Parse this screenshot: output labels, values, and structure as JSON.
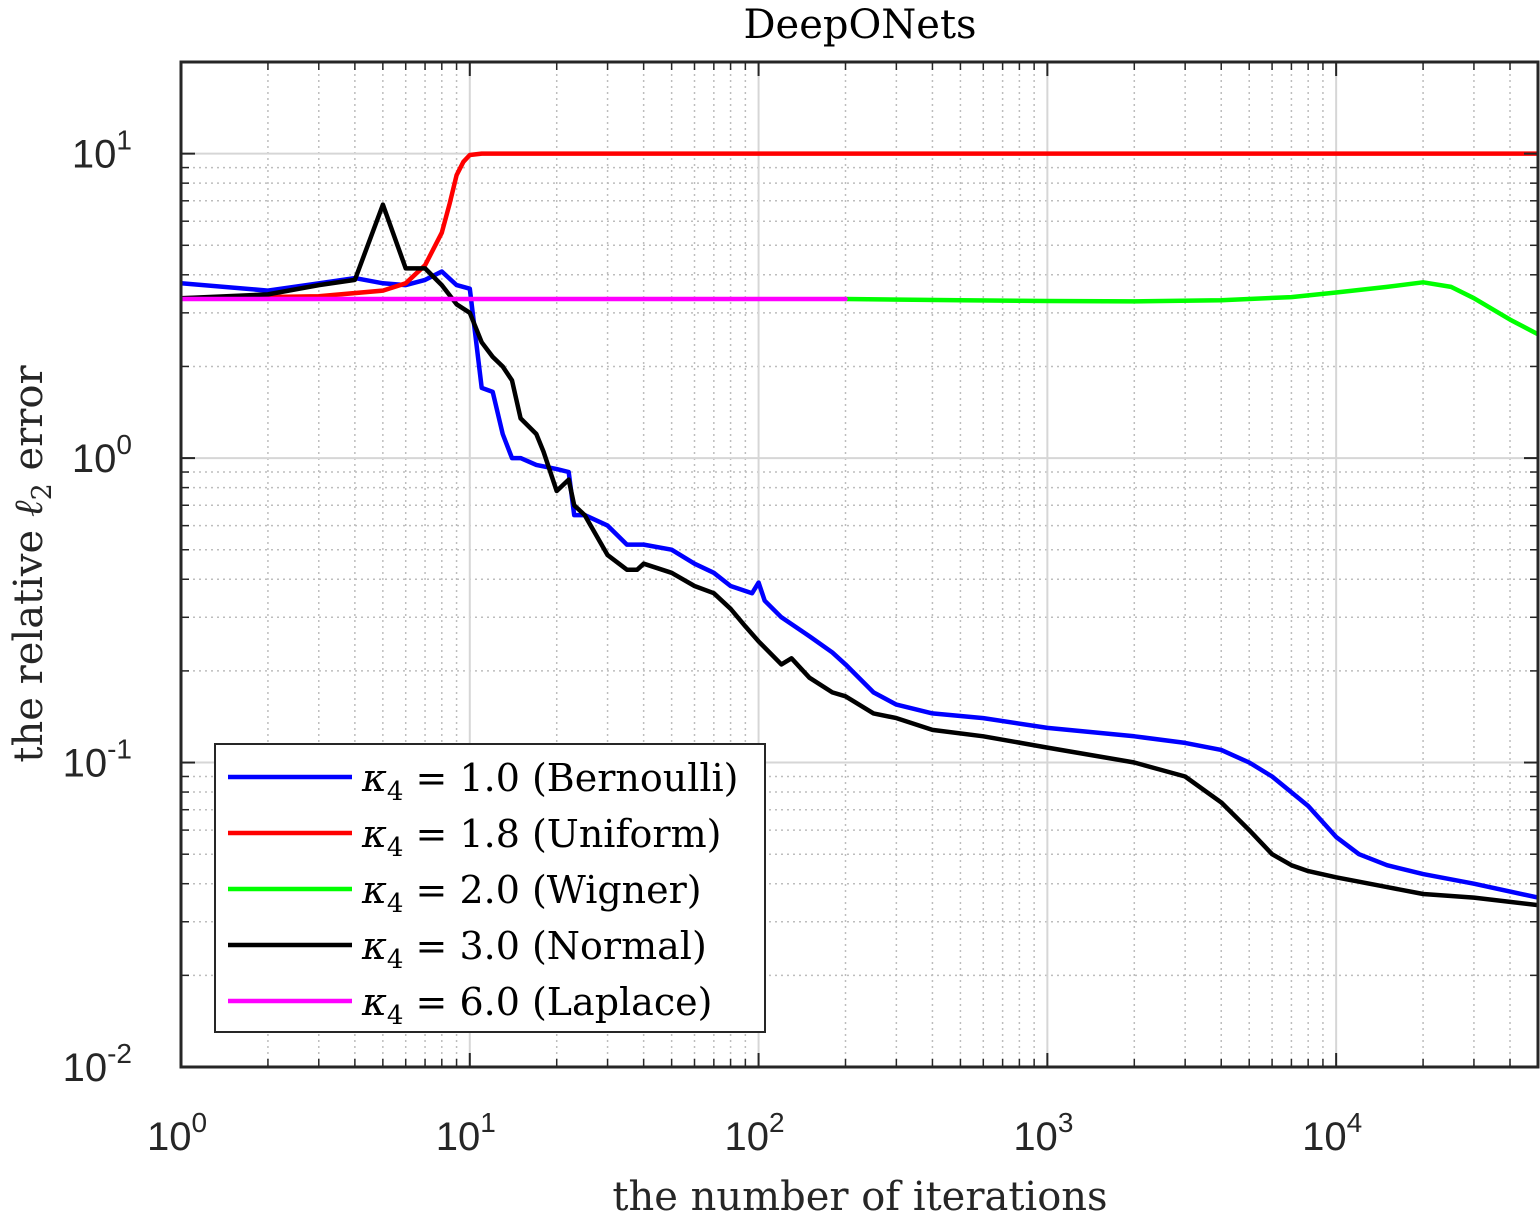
{
  "chart_data": {
    "type": "line",
    "title": "DeepONets",
    "xlabel": "the number of iterations",
    "ylabel": {
      "prefix": "the relative ",
      "symbol": "ℓ",
      "subscript": "2",
      "suffix": " error"
    },
    "xscale": "log",
    "yscale": "log",
    "xlim": [
      1,
      50000
    ],
    "ylim": [
      0.01,
      20
    ],
    "grid": true,
    "legend_position": "bottom-left",
    "x_ticks": [
      {
        "value": 1,
        "base": "10",
        "exp": "0"
      },
      {
        "value": 10,
        "base": "10",
        "exp": "1"
      },
      {
        "value": 100,
        "base": "10",
        "exp": "2"
      },
      {
        "value": 1000,
        "base": "10",
        "exp": "3"
      },
      {
        "value": 10000,
        "base": "10",
        "exp": "4"
      }
    ],
    "y_ticks": [
      {
        "value": 10,
        "base": "10",
        "exp": "1"
      },
      {
        "value": 1,
        "base": "10",
        "exp": "0"
      },
      {
        "value": 0.1,
        "base": "10",
        "exp": "-1"
      },
      {
        "value": 0.01,
        "base": "10",
        "exp": "-2"
      }
    ],
    "series": [
      {
        "name": "κ4 = 1.0 (Bernoulli)",
        "label": {
          "kappa": "κ",
          "sub": "4",
          "rest": " = 1.0 (Bernoulli)"
        },
        "color": "#0000ff",
        "x": [
          1,
          2,
          3,
          4,
          5,
          6,
          7,
          8,
          9,
          10,
          11,
          12,
          13,
          14,
          15,
          17,
          20,
          22,
          23,
          25,
          30,
          35,
          40,
          50,
          60,
          70,
          80,
          95,
          100,
          105,
          120,
          150,
          180,
          200,
          250,
          300,
          400,
          600,
          1000,
          2000,
          3000,
          4000,
          5000,
          6000,
          8000,
          10000,
          12000,
          15000,
          20000,
          30000,
          50000
        ],
        "y": [
          3.75,
          3.55,
          3.75,
          3.9,
          3.75,
          3.7,
          3.85,
          4.1,
          3.7,
          3.6,
          1.7,
          1.65,
          1.2,
          1.0,
          1.0,
          0.95,
          0.92,
          0.9,
          0.65,
          0.65,
          0.6,
          0.52,
          0.52,
          0.5,
          0.45,
          0.42,
          0.38,
          0.36,
          0.39,
          0.34,
          0.3,
          0.26,
          0.23,
          0.21,
          0.17,
          0.155,
          0.145,
          0.14,
          0.13,
          0.122,
          0.116,
          0.11,
          0.1,
          0.09,
          0.072,
          0.057,
          0.05,
          0.046,
          0.043,
          0.04,
          0.036
        ]
      },
      {
        "name": "κ4 = 1.8 (Uniform)",
        "label": {
          "kappa": "κ",
          "sub": "4",
          "rest": " = 1.8 (Uniform)"
        },
        "color": "#ff0000",
        "x": [
          1,
          3,
          5,
          6,
          7,
          8,
          8.5,
          9,
          9.5,
          10,
          11,
          15,
          100,
          1000,
          10000,
          50000
        ],
        "y": [
          3.35,
          3.4,
          3.55,
          3.75,
          4.3,
          5.5,
          6.8,
          8.5,
          9.4,
          9.9,
          10,
          10,
          10,
          10,
          10,
          10
        ]
      },
      {
        "name": "κ4 = 2.0 (Wigner)",
        "label": {
          "kappa": "κ",
          "sub": "4",
          "rest": " = 2.0 (Wigner)"
        },
        "color": "#00ff00",
        "x": [
          200,
          500,
          1000,
          2000,
          4000,
          7000,
          10000,
          15000,
          20000,
          25000,
          30000,
          40000,
          50000
        ],
        "y": [
          3.33,
          3.3,
          3.28,
          3.27,
          3.3,
          3.38,
          3.5,
          3.65,
          3.78,
          3.65,
          3.35,
          2.85,
          2.55
        ]
      },
      {
        "name": "κ4 = 3.0 (Normal)",
        "label": {
          "kappa": "κ",
          "sub": "4",
          "rest": " = 3.0 (Normal)"
        },
        "color": "#000000",
        "x": [
          1,
          2,
          3,
          4,
          5,
          6,
          7,
          8,
          9,
          10,
          11,
          12,
          13,
          14,
          15,
          17,
          18,
          20,
          22,
          23,
          25,
          30,
          35,
          38,
          40,
          50,
          60,
          70,
          80,
          90,
          100,
          120,
          130,
          150,
          180,
          200,
          250,
          300,
          400,
          600,
          1000,
          2000,
          3000,
          4000,
          5000,
          6000,
          7000,
          8000,
          10000,
          15000,
          20000,
          30000,
          50000
        ],
        "y": [
          3.35,
          3.45,
          3.7,
          3.85,
          6.8,
          4.2,
          4.2,
          3.7,
          3.2,
          3.0,
          2.4,
          2.15,
          2.0,
          1.8,
          1.35,
          1.2,
          1.05,
          0.78,
          0.85,
          0.7,
          0.65,
          0.48,
          0.43,
          0.43,
          0.45,
          0.42,
          0.38,
          0.36,
          0.32,
          0.28,
          0.25,
          0.21,
          0.22,
          0.19,
          0.17,
          0.165,
          0.145,
          0.14,
          0.128,
          0.122,
          0.112,
          0.1,
          0.09,
          0.074,
          0.06,
          0.05,
          0.046,
          0.044,
          0.042,
          0.039,
          0.037,
          0.036,
          0.034
        ]
      },
      {
        "name": "κ4 = 6.0 (Laplace)",
        "label": {
          "kappa": "κ",
          "sub": "4",
          "rest": " = 6.0 (Laplace)"
        },
        "color": "#ff00ff",
        "x": [
          1,
          200
        ],
        "y": [
          3.33,
          3.33
        ]
      }
    ]
  }
}
